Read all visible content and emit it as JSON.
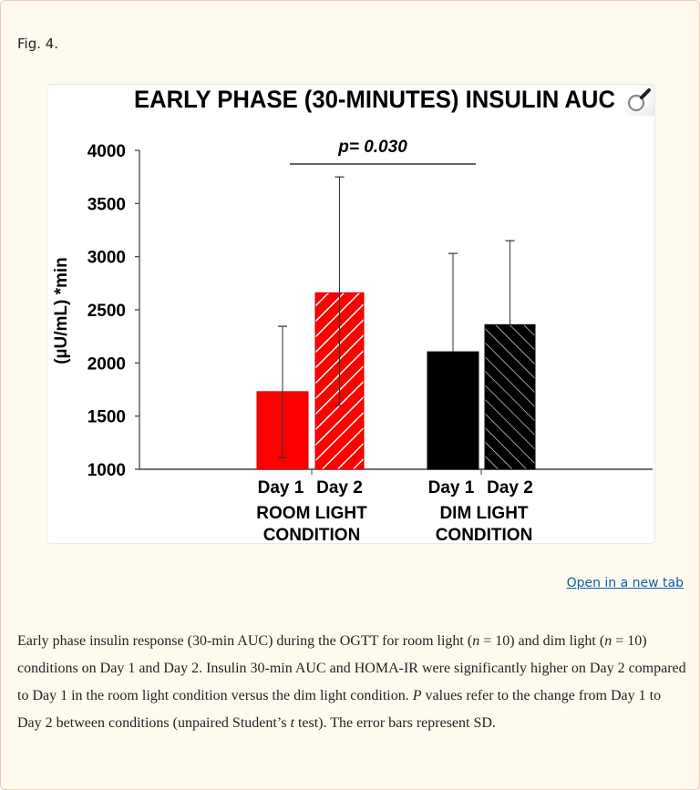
{
  "figure": {
    "label": "Fig. 4.",
    "open_link": "Open in a new tab",
    "caption_parts": [
      "Early phase insulin response (30-min AUC) during the OGTT for room light (",
      "n",
      " = 10) and dim light (",
      "n",
      " = 10) conditions on Day 1 and Day 2. Insulin 30-min AUC and HOMA-IR were significantly higher on Day 2 compared to Day 1 in the room light condition versus the dim light condition. ",
      "P",
      " values refer to the change from Day 1 to Day 2 between conditions (unpaired Student’s ",
      "t",
      " test). The error bars represent SD."
    ]
  },
  "chart_data": {
    "type": "bar",
    "title": "EARLY PHASE (30-MINUTES) INSULIN AUC",
    "ylabel": "(µU/mL) *min",
    "xlabel": "",
    "ylim": [
      1000,
      4000
    ],
    "yticks": [
      1000,
      1500,
      2000,
      2500,
      3000,
      3500,
      4000
    ],
    "groups": [
      {
        "label_line1": "ROOM LIGHT",
        "label_line2": "CONDITION",
        "color": "#ff0000"
      },
      {
        "label_line1": "DIM LIGHT",
        "label_line2": "CONDITION",
        "color": "#000000"
      }
    ],
    "categories": [
      "Day 1",
      "Day 2"
    ],
    "series": [
      {
        "name": "Room Light Day 1",
        "group": "ROOM LIGHT CONDITION",
        "day": "Day 1",
        "value": 1730,
        "sd_upper": 2345,
        "sd_lower": 1110,
        "pattern": "solid",
        "color": "#ff0000"
      },
      {
        "name": "Room Light Day 2",
        "group": "ROOM LIGHT CONDITION",
        "day": "Day 2",
        "value": 2660,
        "sd_upper": 3750,
        "sd_lower": 1600,
        "pattern": "hatched",
        "color": "#ff0000"
      },
      {
        "name": "Dim Light Day 1",
        "group": "DIM LIGHT CONDITION",
        "day": "Day 1",
        "value": 2105,
        "sd_upper": 3030,
        "sd_lower": null,
        "pattern": "solid",
        "color": "#000000"
      },
      {
        "name": "Dim Light Day 2",
        "group": "DIM LIGHT CONDITION",
        "day": "Day 2",
        "value": 2360,
        "sd_upper": 3150,
        "sd_lower": null,
        "pattern": "hatched",
        "color": "#000000"
      }
    ],
    "annotations": [
      {
        "text": "p= 0.030",
        "spans": [
          "ROOM LIGHT CONDITION",
          "DIM LIGHT CONDITION"
        ]
      }
    ],
    "grid": false,
    "legend": null
  }
}
